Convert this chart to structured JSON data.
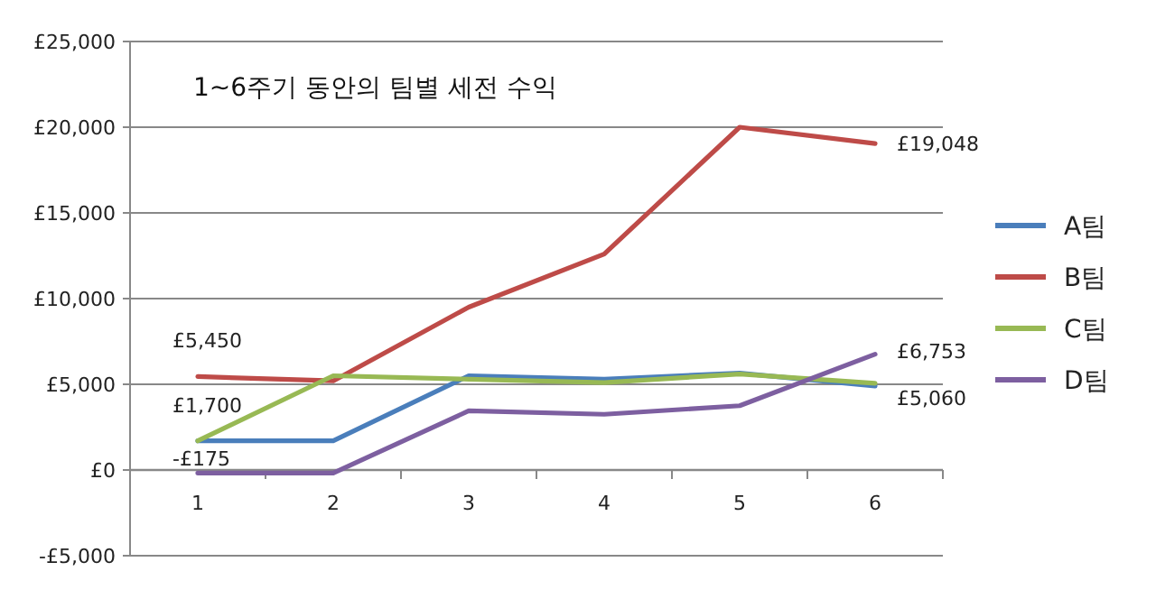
{
  "chart_data": {
    "type": "line",
    "title": "1~6주기 동안의 팀별 세전 수익",
    "categories": [
      "1",
      "2",
      "3",
      "4",
      "5",
      "6"
    ],
    "series": [
      {
        "name": "A팀",
        "color": "#4a7ebb",
        "values": [
          1700,
          1700,
          5500,
          5300,
          5650,
          4900
        ],
        "value_labels": [
          "£1,700",
          null,
          null,
          null,
          null,
          null
        ]
      },
      {
        "name": "B팀",
        "color": "#be4b48",
        "values": [
          5450,
          5200,
          9500,
          12600,
          20000,
          19048
        ],
        "value_labels": [
          "£5,450",
          null,
          null,
          null,
          null,
          "£19,048"
        ]
      },
      {
        "name": "C팀",
        "color": "#98b954",
        "values": [
          1700,
          5500,
          5300,
          5100,
          5600,
          5060
        ],
        "value_labels": [
          null,
          null,
          null,
          null,
          null,
          "£5,060"
        ]
      },
      {
        "name": "D팀",
        "color": "#7d5fa0",
        "values": [
          -175,
          -175,
          3450,
          3250,
          3750,
          6753
        ],
        "value_labels": [
          "-£175",
          null,
          null,
          null,
          null,
          "£6,753"
        ]
      }
    ],
    "ylim": [
      -5000,
      25000
    ],
    "yticks": [
      {
        "value": -5000,
        "label": "-£5,000"
      },
      {
        "value": 0,
        "label": "£0"
      },
      {
        "value": 5000,
        "label": "£5,000"
      },
      {
        "value": 10000,
        "label": "£10,000"
      },
      {
        "value": 15000,
        "label": "£15,000"
      },
      {
        "value": 20000,
        "label": "£20,000"
      },
      {
        "value": 25000,
        "label": "£25,000"
      }
    ],
    "grid": "y",
    "legend": "right",
    "marker": "none",
    "line_style": "solid"
  }
}
